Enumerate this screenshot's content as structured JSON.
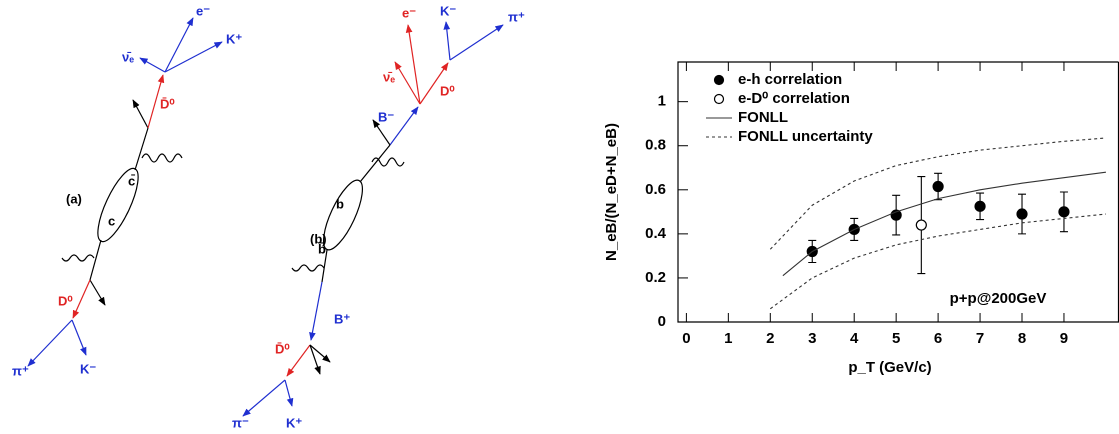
{
  "diagrams": [
    {
      "label": "(a)",
      "particles": [
        "e⁻",
        "K⁺",
        "ν̄ₑ",
        "D̄⁰",
        "c̄",
        "c",
        "D⁰",
        "π⁺",
        "K⁻"
      ]
    },
    {
      "label": "(b)",
      "particles": [
        "e⁻",
        "K⁻",
        "π⁺",
        "ν̄ₑ",
        "D⁰",
        "B⁻",
        "b",
        "b̄",
        "B⁺",
        "D̄⁰",
        "π⁻",
        "K⁺"
      ]
    }
  ],
  "chart_data": {
    "type": "scatter",
    "xlabel": "p_T (GeV/c)",
    "ylabel": "N_eB/(N_eD+N_eB)",
    "annotation": "p+p@200GeV",
    "xlim": [
      -0.2,
      10.3
    ],
    "ylim": [
      0,
      1.18
    ],
    "xticks": [
      0,
      1,
      2,
      3,
      4,
      5,
      6,
      7,
      8,
      9
    ],
    "yticks": [
      0,
      0.2,
      0.4,
      0.6,
      0.8,
      1
    ],
    "series": [
      {
        "name": "e-h correlation",
        "marker": "filled",
        "color": "#000000",
        "x": [
          3,
          4,
          5,
          6,
          7,
          8,
          9
        ],
        "values": [
          0.32,
          0.42,
          0.485,
          0.615,
          0.525,
          0.49,
          0.5
        ],
        "errors": [
          0.05,
          0.05,
          0.09,
          0.06,
          0.06,
          0.09,
          0.09
        ]
      },
      {
        "name": "e-D⁰ correlation",
        "marker": "open",
        "color": "#000000",
        "x": [
          5.6
        ],
        "values": [
          0.44
        ],
        "errors": [
          0.22
        ]
      },
      {
        "name": "FONLL",
        "style": "solid",
        "color": "#333333",
        "x": [
          2.3,
          3,
          4,
          5,
          6,
          7,
          8,
          9,
          10
        ],
        "values": [
          0.21,
          0.32,
          0.42,
          0.5,
          0.56,
          0.6,
          0.63,
          0.655,
          0.68
        ]
      },
      {
        "name": "FONLL uncertainty",
        "style": "dashed",
        "color": "#333333",
        "x": [
          2,
          3,
          4,
          5,
          6,
          7,
          8,
          9,
          10
        ],
        "values": [
          0.33,
          0.53,
          0.64,
          0.71,
          0.75,
          0.78,
          0.8,
          0.82,
          0.835
        ],
        "lower": [
          0.06,
          0.2,
          0.29,
          0.35,
          0.39,
          0.42,
          0.45,
          0.47,
          0.49
        ]
      }
    ]
  }
}
